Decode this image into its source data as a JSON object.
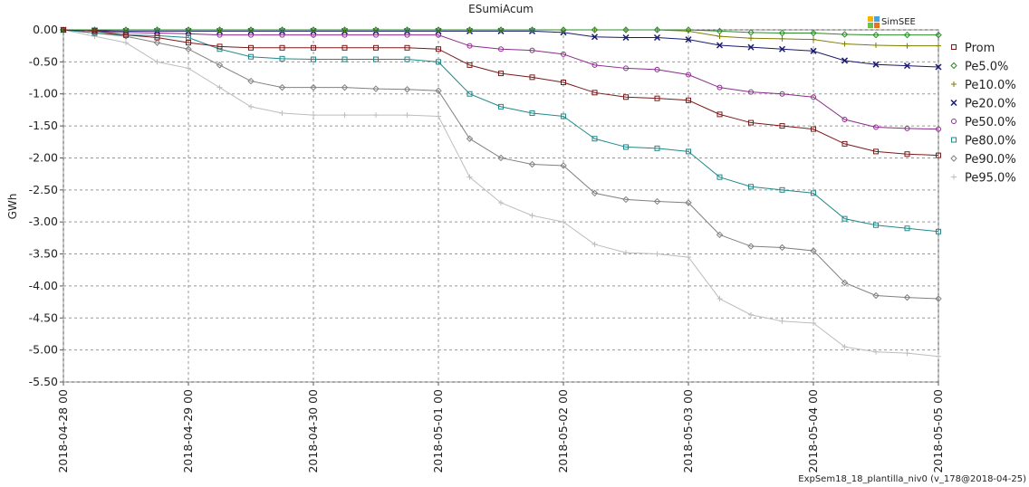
{
  "chart_data": {
    "type": "line",
    "title": "ESumiAcum",
    "y_label": "GWh",
    "logo": "SimSEE",
    "footer": "ExpSem18_18_plantilla_niv0 (v_178@2018-04-25)",
    "grid": true,
    "legend": "right",
    "x": [
      "2018-04-28 00",
      "2018-04-28 06",
      "2018-04-28 12",
      "2018-04-28 18",
      "2018-04-29 00",
      "2018-04-29 06",
      "2018-04-29 12",
      "2018-04-29 18",
      "2018-04-30 00",
      "2018-04-30 06",
      "2018-04-30 12",
      "2018-04-30 18",
      "2018-05-01 00",
      "2018-05-01 06",
      "2018-05-01 12",
      "2018-05-01 18",
      "2018-05-02 00",
      "2018-05-02 06",
      "2018-05-02 12",
      "2018-05-02 18",
      "2018-05-03 00",
      "2018-05-03 06",
      "2018-05-03 12",
      "2018-05-03 18",
      "2018-05-04 00",
      "2018-05-04 06",
      "2018-05-04 12",
      "2018-05-04 18",
      "2018-05-05 00"
    ],
    "xlim": [
      "2018-04-28 00",
      "2018-05-05 00"
    ],
    "xticks": [
      "2018-04-28 00",
      "2018-04-29 00",
      "2018-04-30 00",
      "2018-05-01 00",
      "2018-05-02 00",
      "2018-05-03 00",
      "2018-05-04 00",
      "2018-05-05 00"
    ],
    "ylim": [
      -5.5,
      0
    ],
    "yticks": [
      {
        "value": 0,
        "label": "0.00"
      },
      {
        "value": -0.5,
        "label": "-0.50"
      },
      {
        "value": -1,
        "label": "-1.00"
      },
      {
        "value": -1.5,
        "label": "-1.50"
      },
      {
        "value": -2,
        "label": "-2.00"
      },
      {
        "value": -2.5,
        "label": "-2.50"
      },
      {
        "value": -3,
        "label": "-3.00"
      },
      {
        "value": -3.5,
        "label": "-3.50"
      },
      {
        "value": -4,
        "label": "-4.00"
      },
      {
        "value": -4.5,
        "label": "-4.50"
      },
      {
        "value": -5,
        "label": "-5.00"
      },
      {
        "value": -5.5,
        "label": "-5.50"
      }
    ],
    "series": [
      {
        "name": "Prom",
        "color": "#7a1a1a",
        "marker": "square",
        "values": [
          0,
          -0.02,
          -0.08,
          -0.12,
          -0.2,
          -0.26,
          -0.28,
          -0.28,
          -0.28,
          -0.28,
          -0.28,
          -0.28,
          -0.3,
          -0.55,
          -0.68,
          -0.74,
          -0.82,
          -0.98,
          -1.05,
          -1.07,
          -1.1,
          -1.32,
          -1.45,
          -1.5,
          -1.55,
          -1.78,
          -1.9,
          -1.94,
          -1.96
        ]
      },
      {
        "name": "Pe5.0%",
        "color": "#2e8b2e",
        "marker": "diamond",
        "values": [
          0,
          0,
          0,
          0,
          0,
          0,
          0,
          0,
          0,
          0,
          0,
          0,
          0,
          0,
          0,
          0,
          0,
          0,
          0,
          0,
          0,
          -0.02,
          -0.04,
          -0.05,
          -0.05,
          -0.07,
          -0.08,
          -0.08,
          -0.08
        ]
      },
      {
        "name": "Pe10.0%",
        "color": "#7d7d00",
        "marker": "plus",
        "values": [
          0,
          0,
          0,
          0,
          0,
          0,
          0,
          0,
          0,
          0,
          0,
          0,
          0,
          0,
          0,
          0,
          0,
          0,
          0,
          0,
          -0.02,
          -0.1,
          -0.13,
          -0.14,
          -0.15,
          -0.22,
          -0.24,
          -0.25,
          -0.25
        ]
      },
      {
        "name": "Pe20.0%",
        "color": "#1a1a6e",
        "marker": "cross",
        "values": [
          0,
          -0.01,
          -0.02,
          -0.02,
          -0.02,
          -0.02,
          -0.02,
          -0.02,
          -0.02,
          -0.02,
          -0.02,
          -0.02,
          -0.02,
          -0.02,
          -0.02,
          -0.02,
          -0.04,
          -0.11,
          -0.12,
          -0.12,
          -0.15,
          -0.24,
          -0.27,
          -0.3,
          -0.33,
          -0.48,
          -0.54,
          -0.56,
          -0.58
        ]
      },
      {
        "name": "Pe50.0%",
        "color": "#8b2c8b",
        "marker": "circle",
        "values": [
          0,
          -0.02,
          -0.04,
          -0.05,
          -0.06,
          -0.08,
          -0.08,
          -0.08,
          -0.08,
          -0.08,
          -0.08,
          -0.08,
          -0.08,
          -0.25,
          -0.3,
          -0.32,
          -0.38,
          -0.55,
          -0.6,
          -0.62,
          -0.7,
          -0.9,
          -0.97,
          -1,
          -1.05,
          -1.4,
          -1.52,
          -1.54,
          -1.55
        ]
      },
      {
        "name": "Pe80.0%",
        "color": "#1f8a8a",
        "marker": "square",
        "values": [
          0,
          -0.05,
          -0.08,
          -0.09,
          -0.12,
          -0.3,
          -0.42,
          -0.45,
          -0.46,
          -0.46,
          -0.46,
          -0.46,
          -0.5,
          -1,
          -1.2,
          -1.3,
          -1.35,
          -1.7,
          -1.83,
          -1.85,
          -1.9,
          -2.3,
          -2.45,
          -2.5,
          -2.55,
          -2.95,
          -3.05,
          -3.1,
          -3.15
        ]
      },
      {
        "name": "Pe90.0%",
        "color": "#808080",
        "marker": "diamond",
        "values": [
          0,
          -0.05,
          -0.1,
          -0.2,
          -0.3,
          -0.55,
          -0.8,
          -0.9,
          -0.9,
          -0.9,
          -0.92,
          -0.93,
          -0.95,
          -1.7,
          -2,
          -2.1,
          -2.12,
          -2.55,
          -2.65,
          -2.68,
          -2.7,
          -3.2,
          -3.38,
          -3.4,
          -3.45,
          -3.95,
          -4.15,
          -4.18,
          -4.2
        ]
      },
      {
        "name": "Pe95.0%",
        "color": "#bdbdbd",
        "marker": "plus",
        "values": [
          0,
          -0.1,
          -0.2,
          -0.5,
          -0.6,
          -0.9,
          -1.2,
          -1.3,
          -1.33,
          -1.33,
          -1.33,
          -1.33,
          -1.35,
          -2.3,
          -2.7,
          -2.9,
          -3,
          -3.35,
          -3.48,
          -3.5,
          -3.55,
          -4.2,
          -4.45,
          -4.55,
          -4.58,
          -4.95,
          -5.03,
          -5.05,
          -5.1
        ]
      }
    ]
  }
}
